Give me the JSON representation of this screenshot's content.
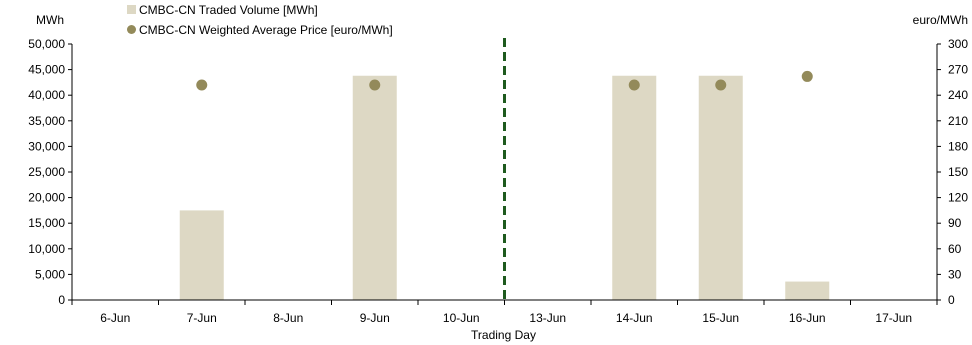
{
  "chart_data": {
    "type": "bar",
    "categories": [
      "6-Jun",
      "7-Jun",
      "8-Jun",
      "9-Jun",
      "10-Jun",
      "13-Jun",
      "14-Jun",
      "15-Jun",
      "16-Jun",
      "17-Jun"
    ],
    "xlabel": "Trading Day",
    "y_left_unit": "MWh",
    "y_right_unit": "euro/MWh",
    "y_left_range": [
      0,
      50000
    ],
    "y_left_ticks": [
      "0",
      "5,000",
      "10,000",
      "15,000",
      "20,000",
      "25,000",
      "30,000",
      "35,000",
      "40,000",
      "45,000",
      "50,000"
    ],
    "y_right_range": [
      0,
      300
    ],
    "y_right_ticks": [
      "0",
      "30",
      "60",
      "90",
      "120",
      "150",
      "180",
      "210",
      "240",
      "270",
      "300"
    ],
    "series": [
      {
        "name": "CMBC-CN Traded Volume [MWh]",
        "type": "bar",
        "axis": "left",
        "color": "#ddd8c4",
        "values": [
          0,
          17500,
          0,
          43800,
          0,
          0,
          43800,
          43800,
          3600,
          0
        ]
      },
      {
        "name": "CMBC-CN Weighted Average Price [euro/MWh]",
        "type": "scatter",
        "axis": "right",
        "color": "#938a5a",
        "values": [
          null,
          252,
          null,
          252,
          null,
          null,
          252,
          252,
          262,
          null
        ]
      }
    ],
    "divider": {
      "after_category": "10-Jun",
      "style": "dashed",
      "color": "#1e5a1e"
    },
    "grid": false,
    "legend": "top-left"
  }
}
